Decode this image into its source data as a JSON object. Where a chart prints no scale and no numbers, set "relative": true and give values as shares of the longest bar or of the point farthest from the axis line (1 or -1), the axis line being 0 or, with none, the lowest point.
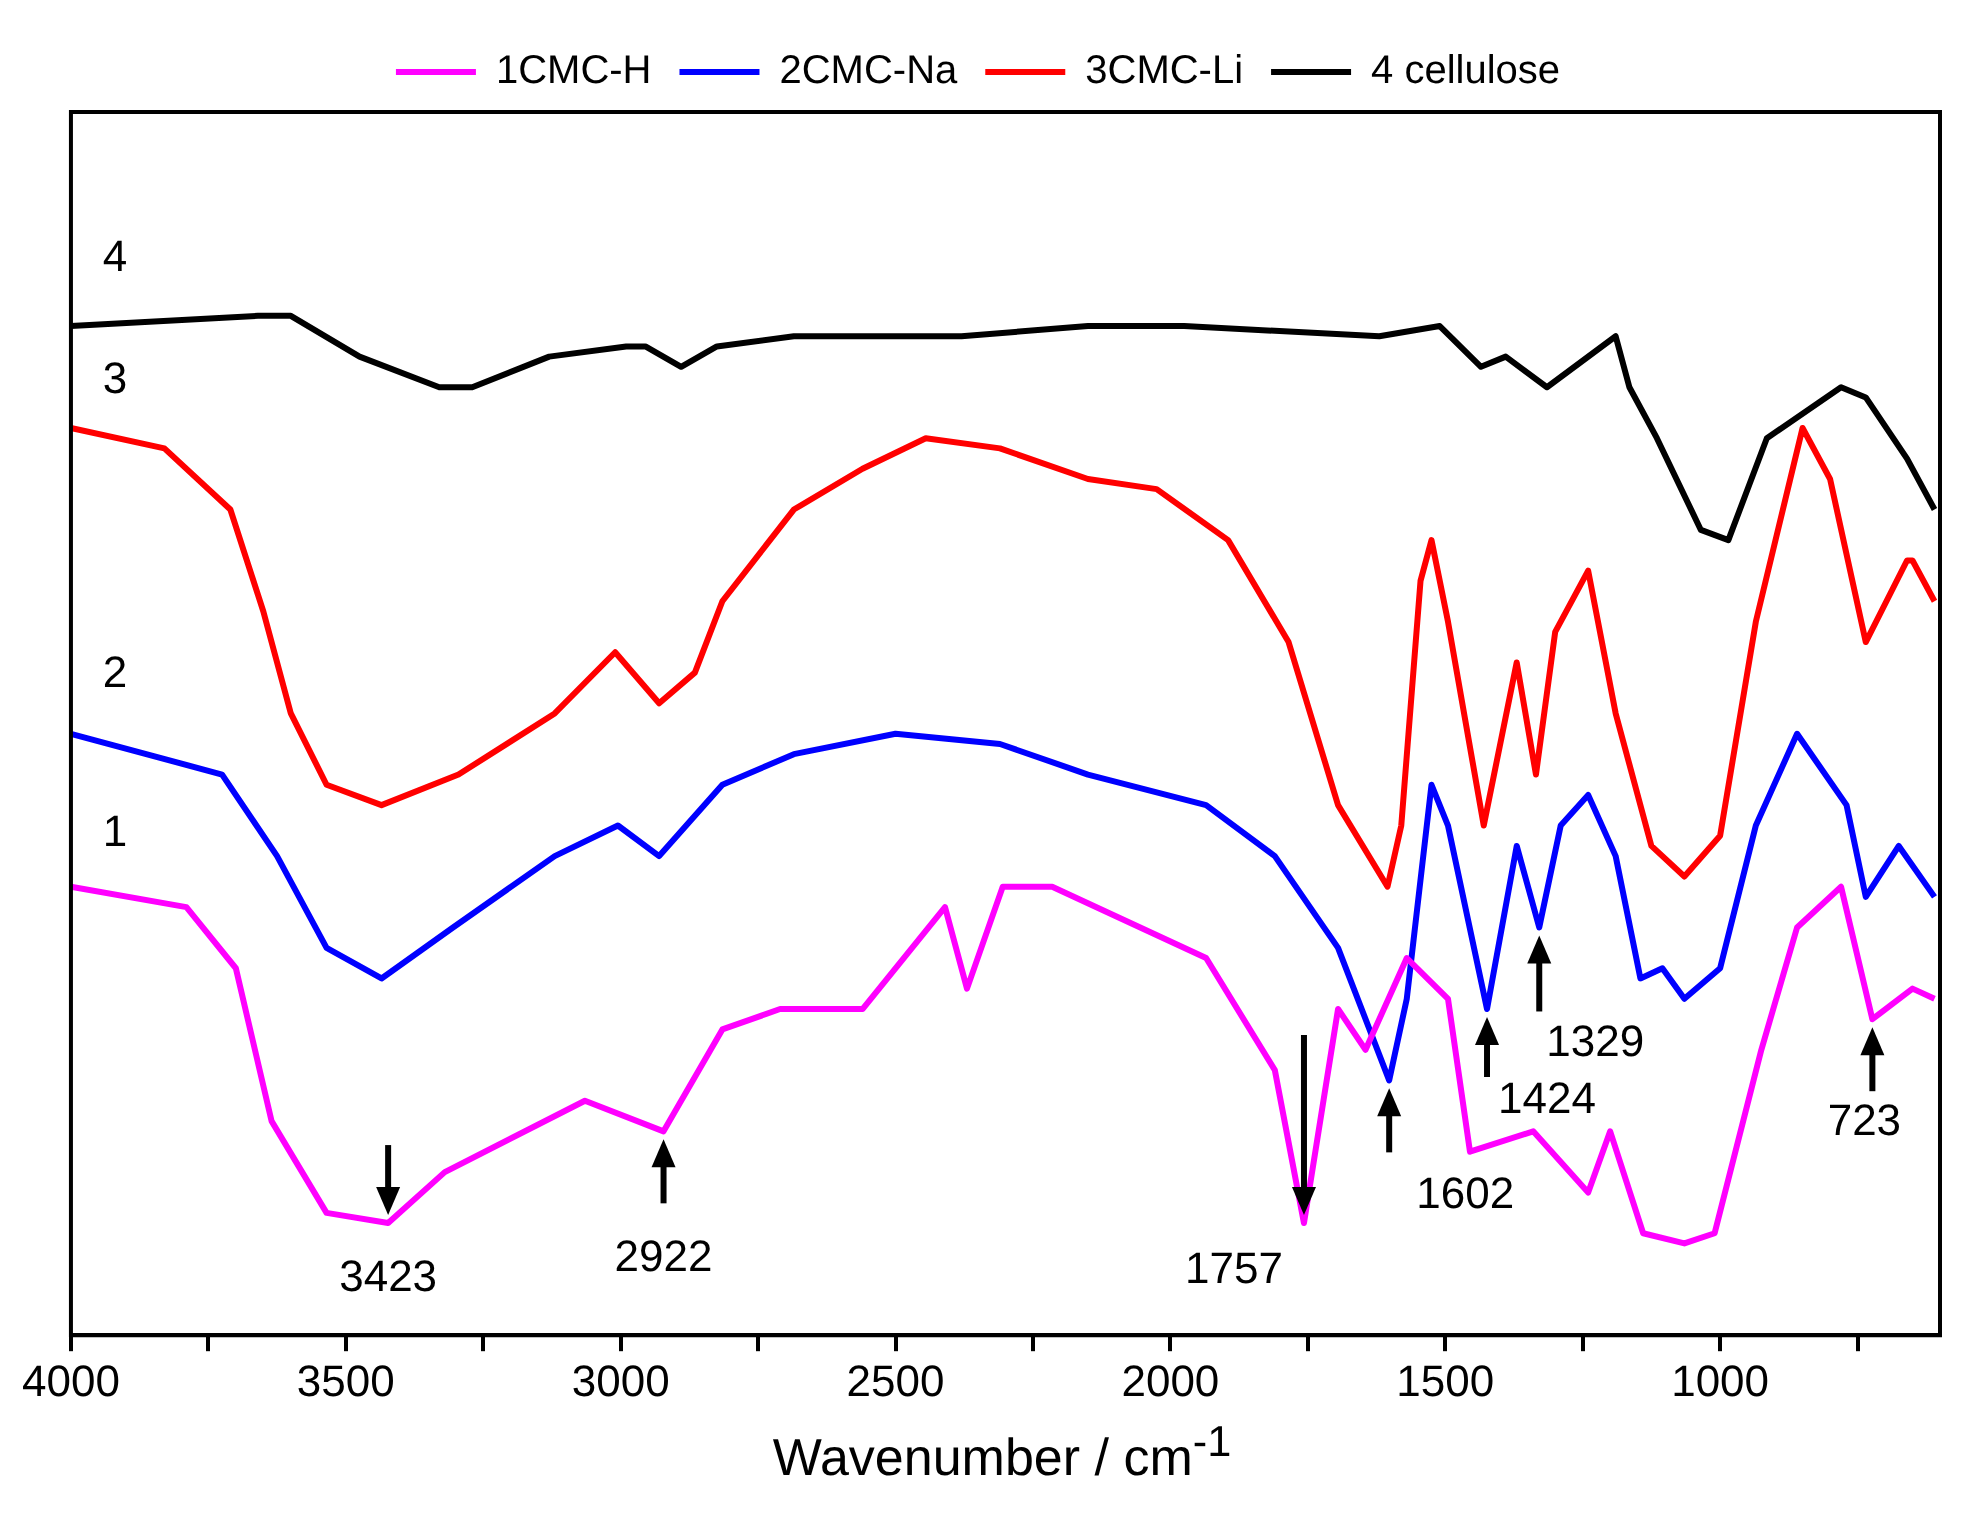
{
  "chart_data": {
    "type": "line",
    "relative": true,
    "xlabel": "Wavenumber / cm$^{-1}$",
    "xlim": [
      4000,
      600
    ],
    "xticks": [
      4000,
      {
        "value": 3750,
        "label": null
      },
      3500,
      {
        "value": 3250,
        "label": null
      },
      3000,
      {
        "value": 2750,
        "label": null
      },
      2500,
      {
        "value": 2250,
        "label": null
      },
      2000,
      {
        "value": 1750,
        "label": null
      },
      1500,
      {
        "value": 1250,
        "label": null
      },
      1000,
      {
        "value": 750,
        "label": null
      }
    ],
    "legend": "top",
    "series": [
      {
        "name": "1CMC-H",
        "color": "#ff00ff",
        "x": [
          4000,
          3790,
          3700,
          3635,
          3535,
          3423,
          3320,
          3065,
          2922,
          2815,
          2710,
          2650,
          2560,
          2410,
          2370,
          2305,
          2215,
          1935,
          1810,
          1757,
          1695,
          1645,
          1570,
          1495,
          1455,
          1340,
          1240,
          1200,
          1140,
          1065,
          1010,
          925,
          860,
          780,
          723,
          650,
          610
        ],
        "values": [
          0.44,
          0.42,
          0.36,
          0.21,
          0.12,
          0.11,
          0.16,
          0.23,
          0.2,
          0.3,
          0.32,
          0.32,
          0.32,
          0.42,
          0.34,
          0.44,
          0.44,
          0.37,
          0.26,
          0.11,
          0.32,
          0.28,
          0.37,
          0.33,
          0.18,
          0.2,
          0.14,
          0.2,
          0.1,
          0.09,
          0.1,
          0.28,
          0.4,
          0.44,
          0.31,
          0.34,
          0.33
        ]
      },
      {
        "name": "2CMC-Na",
        "color": "#0000ff",
        "x": [
          4000,
          3725,
          3625,
          3535,
          3435,
          3305,
          3120,
          3005,
          2930,
          2815,
          2685,
          2500,
          2310,
          2150,
          1935,
          1810,
          1695,
          1602,
          1570,
          1525,
          1495,
          1424,
          1370,
          1329,
          1290,
          1240,
          1190,
          1145,
          1105,
          1065,
          1000,
          935,
          860,
          770,
          735,
          675,
          610
        ],
        "values": [
          0.59,
          0.55,
          0.47,
          0.38,
          0.35,
          0.4,
          0.47,
          0.5,
          0.47,
          0.54,
          0.57,
          0.59,
          0.58,
          0.55,
          0.52,
          0.47,
          0.38,
          0.25,
          0.33,
          0.54,
          0.5,
          0.32,
          0.48,
          0.4,
          0.5,
          0.53,
          0.47,
          0.35,
          0.36,
          0.33,
          0.36,
          0.5,
          0.59,
          0.52,
          0.43,
          0.48,
          0.43
        ]
      },
      {
        "name": "3CMC-Li",
        "color": "#ff0000",
        "x": [
          4000,
          3830,
          3710,
          3650,
          3600,
          3535,
          3435,
          3295,
          3120,
          3010,
          2930,
          2865,
          2815,
          2685,
          2560,
          2445,
          2310,
          2150,
          2025,
          1895,
          1785,
          1695,
          1605,
          1580,
          1545,
          1525,
          1495,
          1430,
          1370,
          1335,
          1300,
          1240,
          1190,
          1125,
          1065,
          1000,
          935,
          850,
          800,
          735,
          660,
          650,
          610
        ],
        "values": [
          0.89,
          0.87,
          0.81,
          0.71,
          0.61,
          0.54,
          0.52,
          0.55,
          0.61,
          0.67,
          0.62,
          0.65,
          0.72,
          0.81,
          0.85,
          0.88,
          0.87,
          0.84,
          0.83,
          0.78,
          0.68,
          0.52,
          0.44,
          0.5,
          0.74,
          0.78,
          0.7,
          0.5,
          0.66,
          0.55,
          0.69,
          0.75,
          0.61,
          0.48,
          0.45,
          0.49,
          0.7,
          0.89,
          0.84,
          0.68,
          0.76,
          0.76,
          0.72
        ]
      },
      {
        "name": "4 cellulose",
        "color": "#000000",
        "x": [
          4000,
          3660,
          3600,
          3475,
          3330,
          3270,
          3130,
          2990,
          2955,
          2890,
          2825,
          2685,
          2435,
          2380,
          2150,
          1975,
          1620,
          1510,
          1435,
          1390,
          1315,
          1190,
          1165,
          1115,
          1035,
          985,
          915,
          780,
          735,
          660,
          610
        ],
        "values": [
          0.99,
          1.0,
          1.0,
          0.96,
          0.93,
          0.93,
          0.96,
          0.97,
          0.97,
          0.95,
          0.97,
          0.98,
          0.98,
          0.98,
          0.99,
          0.99,
          0.98,
          0.99,
          0.95,
          0.96,
          0.93,
          0.98,
          0.93,
          0.88,
          0.79,
          0.78,
          0.88,
          0.93,
          0.92,
          0.86,
          0.81
        ]
      }
    ],
    "annotations": [
      "4",
      "3",
      "2",
      "1",
      {
        "text": "3423",
        "x": 3423,
        "y": 0.11
      },
      {
        "text": "2922",
        "x": 2922,
        "y": 0.2
      },
      {
        "text": "1757",
        "x": 1757,
        "y": 0.11
      },
      {
        "text": "1602",
        "x": 1602,
        "y": 0.25
      },
      {
        "text": "1424",
        "x": 1424,
        "y": 0.32
      },
      {
        "text": "1329",
        "x": 1329,
        "y": 0.4
      },
      {
        "text": "723",
        "x": 723,
        "y": 0.31
      }
    ]
  }
}
